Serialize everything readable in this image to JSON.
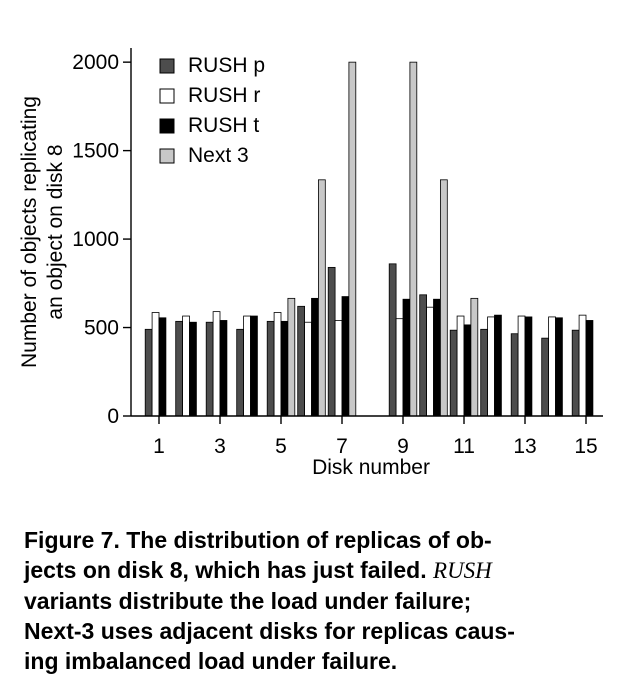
{
  "chart_data": {
    "type": "bar",
    "categories": [
      "1",
      "2",
      "3",
      "4",
      "5",
      "6",
      "7",
      "8",
      "9",
      "10",
      "11",
      "12",
      "13",
      "14",
      "15"
    ],
    "tick_labels": [
      "1",
      "3",
      "5",
      "7",
      "9",
      "11",
      "13",
      "15"
    ],
    "series": [
      {
        "name": "RUSH p",
        "color": "#4d4d4d",
        "values": [
          490,
          535,
          530,
          490,
          535,
          620,
          840,
          null,
          860,
          685,
          485,
          490,
          465,
          440,
          485
        ]
      },
      {
        "name": "RUSH r",
        "color": "#ffffff",
        "values": [
          585,
          565,
          590,
          565,
          585,
          530,
          540,
          null,
          550,
          615,
          565,
          560,
          565,
          560,
          570
        ]
      },
      {
        "name": "RUSH t",
        "color": "#000000",
        "values": [
          555,
          530,
          540,
          565,
          535,
          665,
          675,
          null,
          660,
          660,
          515,
          570,
          560,
          555,
          540
        ]
      },
      {
        "name": "Next 3",
        "color": "#c8c8c8",
        "values": [
          null,
          null,
          null,
          null,
          665,
          1335,
          2000,
          null,
          2000,
          1335,
          665,
          null,
          null,
          null,
          null
        ]
      }
    ],
    "yticks": [
      0,
      500,
      1000,
      1500,
      2000
    ],
    "ylim": [
      0,
      2080
    ],
    "xlabel": "Disk number",
    "ylabel_lines": [
      "Number of objects replicating",
      "an object on disk 8"
    ],
    "legend_position": "top-left"
  },
  "caption": {
    "figure_label": "Figure 7.",
    "text_a": "The distribution of replicas of ob-",
    "text_b": "jects on disk 8, which has just failed.",
    "variant": "RUSH",
    "text_c": "variants distribute the load under failure;",
    "text_d": "Next-3 uses adjacent disks for replicas caus-",
    "text_e": "ing imbalanced load under failure."
  }
}
